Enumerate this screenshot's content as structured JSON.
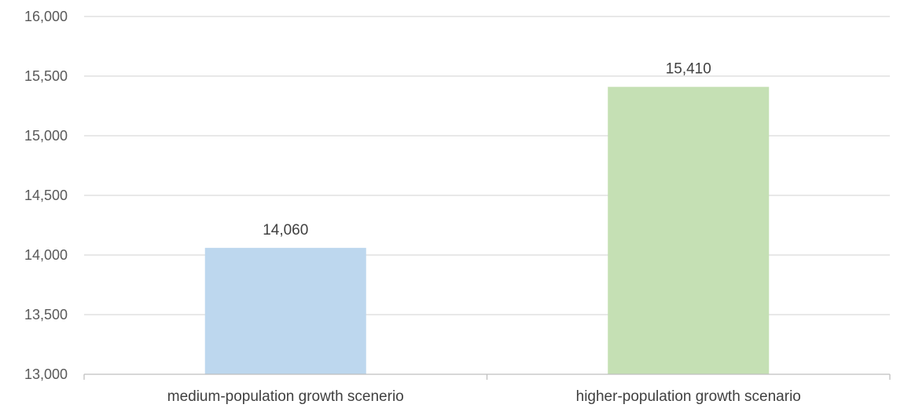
{
  "chart_data": {
    "type": "bar",
    "title": "",
    "xlabel": "",
    "ylabel": "",
    "categories": [
      "medium-population growth scenerio",
      "higher-population growth scenario"
    ],
    "values": [
      14060,
      15410
    ],
    "value_labels": [
      "14,060",
      "15,410"
    ],
    "colors": [
      "#bdd7ee",
      "#c5e0b4"
    ],
    "ylim": [
      13000,
      16000
    ],
    "yticks": [
      13000,
      13500,
      14000,
      14500,
      15000,
      15500,
      16000
    ],
    "ytick_labels": [
      "13,000",
      "13,500",
      "14,000",
      "14,500",
      "15,000",
      "15,500",
      "16,000"
    ],
    "grid": true,
    "legend": "none"
  }
}
